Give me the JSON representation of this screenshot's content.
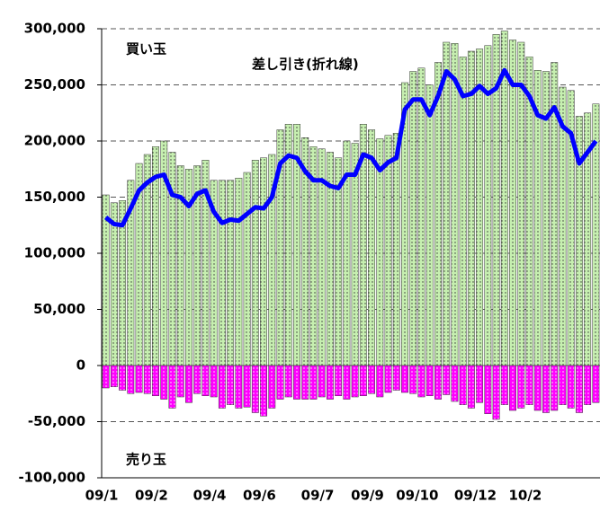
{
  "chart_data": {
    "type": "bar",
    "categories": [
      "09/1",
      null,
      null,
      null,
      null,
      null,
      "09/2",
      null,
      null,
      null,
      null,
      null,
      null,
      "09/4",
      null,
      null,
      null,
      null,
      null,
      "09/6",
      null,
      null,
      null,
      null,
      null,
      null,
      "09/7",
      null,
      null,
      null,
      null,
      null,
      "09/9",
      null,
      null,
      null,
      null,
      null,
      "09/10",
      null,
      null,
      null,
      null,
      null,
      null,
      "09/12",
      null,
      null,
      null,
      null,
      null,
      "10/2",
      null,
      null,
      null,
      null,
      null,
      null,
      null,
      null
    ],
    "series": [
      {
        "name": "買い玉",
        "color": "#c6efb0",
        "values": [
          152000,
          145000,
          147000,
          165000,
          180000,
          188000,
          195000,
          200000,
          190000,
          178000,
          175000,
          178000,
          183000,
          165000,
          165000,
          165000,
          167000,
          172000,
          183000,
          185000,
          188000,
          210000,
          215000,
          215000,
          203000,
          195000,
          193000,
          190000,
          185000,
          200000,
          198000,
          215000,
          210000,
          202000,
          205000,
          207000,
          252000,
          262000,
          265000,
          250000,
          270000,
          288000,
          287000,
          275000,
          280000,
          282000,
          285000,
          295000,
          298000,
          290000,
          288000,
          275000,
          263000,
          262000,
          270000,
          248000,
          245000,
          222000,
          225000,
          233000
        ]
      },
      {
        "name": "売り玉",
        "color": "#ff00ff",
        "values": [
          -20000,
          -19000,
          -22000,
          -25000,
          -24000,
          -25000,
          -27000,
          -30000,
          -38000,
          -28000,
          -33000,
          -25000,
          -27000,
          -28000,
          -38000,
          -35000,
          -38000,
          -37000,
          -42000,
          -45000,
          -38000,
          -30000,
          -28000,
          -30000,
          -30000,
          -30000,
          -28000,
          -30000,
          -27000,
          -30000,
          -28000,
          -27000,
          -25000,
          -28000,
          -24000,
          -22000,
          -24000,
          -25000,
          -28000,
          -27000,
          -30000,
          -26000,
          -32000,
          -35000,
          -38000,
          -33000,
          -43000,
          -48000,
          -35000,
          -40000,
          -38000,
          -35000,
          -40000,
          -42000,
          -40000,
          -35000,
          -38000,
          -42000,
          -35000,
          -33000
        ]
      },
      {
        "name": "差し引き(折れ線)",
        "color": "#0000ff",
        "type": "line",
        "values": [
          132000,
          126000,
          125000,
          140000,
          156000,
          163000,
          168000,
          170000,
          152000,
          150000,
          142000,
          153000,
          156000,
          137000,
          127000,
          130000,
          129000,
          135000,
          141000,
          140000,
          150000,
          180000,
          187000,
          185000,
          173000,
          165000,
          165000,
          160000,
          158000,
          170000,
          170000,
          188000,
          185000,
          174000,
          181000,
          185000,
          228000,
          237000,
          237000,
          223000,
          240000,
          262000,
          255000,
          240000,
          242000,
          249000,
          242000,
          247000,
          263000,
          250000,
          250000,
          240000,
          223000,
          220000,
          230000,
          213000,
          207000,
          180000,
          190000,
          200000
        ]
      }
    ],
    "ylim": [
      -100000,
      300000
    ],
    "yticks": [
      {
        "value": -100000,
        "label": "-100,000"
      },
      {
        "value": -50000,
        "label": "-50,000"
      },
      0,
      {
        "value": 50000,
        "label": "50,000"
      },
      {
        "value": 100000,
        "label": "100,000"
      },
      {
        "value": 150000,
        "label": "150,000"
      },
      {
        "value": 200000,
        "label": "200,000"
      },
      {
        "value": 250000,
        "label": "250,000"
      },
      {
        "value": 300000,
        "label": "300,000"
      }
    ],
    "grid": true
  }
}
